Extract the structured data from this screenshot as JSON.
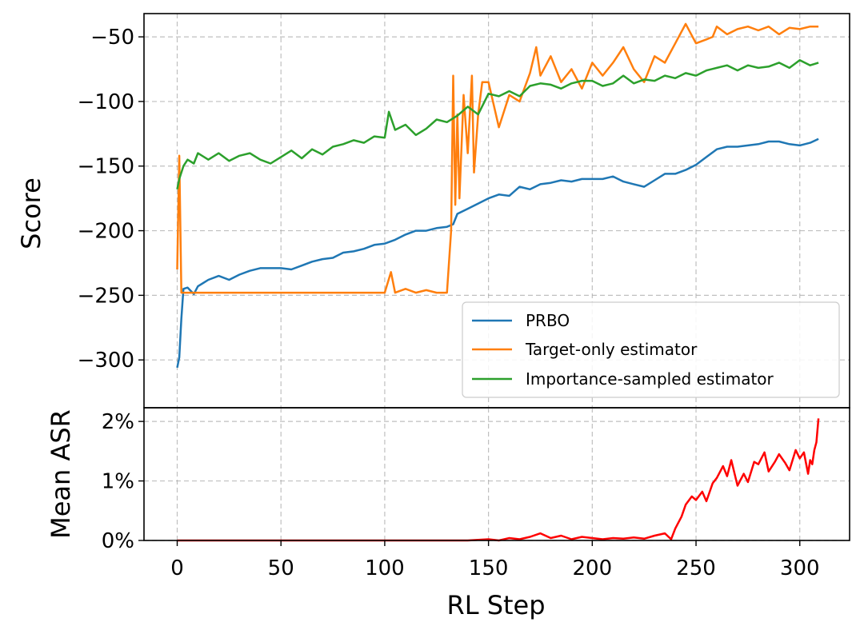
{
  "chart_data": [
    {
      "type": "line",
      "ylabel": "Score",
      "xlim": [
        -16,
        324
      ],
      "ylim": [
        -337,
        -32
      ],
      "yticks": [
        -50,
        -100,
        -150,
        -200,
        -250,
        -300
      ],
      "ytick_labels": [
        "−50",
        "−100",
        "−150",
        "−200",
        "−250",
        "−300"
      ],
      "grid": true,
      "legend_position": "lower-right",
      "series": [
        {
          "name": "PRBO",
          "color": "#1f77b4",
          "x": [
            0,
            1,
            2,
            3,
            5,
            8,
            10,
            15,
            20,
            25,
            30,
            35,
            40,
            45,
            50,
            55,
            60,
            65,
            70,
            75,
            80,
            85,
            90,
            95,
            100,
            105,
            110,
            115,
            120,
            125,
            130,
            133,
            135,
            140,
            145,
            150,
            155,
            160,
            165,
            170,
            175,
            180,
            185,
            190,
            195,
            200,
            205,
            210,
            215,
            220,
            225,
            230,
            235,
            240,
            245,
            250,
            255,
            260,
            265,
            270,
            275,
            280,
            285,
            290,
            295,
            300,
            305,
            309
          ],
          "y": [
            -306,
            -298,
            -268,
            -245,
            -244,
            -249,
            -243,
            -238,
            -235,
            -238,
            -234,
            -231,
            -229,
            -229,
            -229,
            -230,
            -227,
            -224,
            -222,
            -221,
            -217,
            -216,
            -214,
            -211,
            -210,
            -207,
            -203,
            -200,
            -200,
            -198,
            -197,
            -195,
            -187,
            -183,
            -179,
            -175,
            -172,
            -173,
            -166,
            -168,
            -164,
            -163,
            -161,
            -162,
            -160,
            -160,
            -160,
            -158,
            -162,
            -164,
            -166,
            -161,
            -156,
            -156,
            -153,
            -149,
            -143,
            -137,
            -135,
            -135,
            -134,
            -133,
            -131,
            -131,
            -133,
            -134,
            -132,
            -129
          ]
        },
        {
          "name": "Target-only estimator",
          "color": "#ff7f0e",
          "x": [
            0,
            1,
            2,
            3,
            10,
            20,
            30,
            40,
            50,
            55,
            60,
            70,
            80,
            90,
            100,
            103,
            105,
            110,
            115,
            120,
            125,
            130,
            132,
            133,
            134,
            135,
            136,
            138,
            140,
            142,
            143,
            145,
            147,
            150,
            155,
            160,
            165,
            170,
            173,
            175,
            180,
            185,
            190,
            195,
            200,
            205,
            210,
            215,
            220,
            225,
            230,
            235,
            240,
            245,
            250,
            255,
            258,
            260,
            265,
            270,
            275,
            280,
            285,
            290,
            295,
            300,
            305,
            309
          ],
          "y": [
            -230,
            -142,
            -248,
            -248,
            -248,
            -248,
            -248,
            -248,
            -248,
            -248,
            -248,
            -248,
            -248,
            -248,
            -248,
            -232,
            -248,
            -245,
            -248,
            -246,
            -248,
            -248,
            -200,
            -80,
            -180,
            -110,
            -175,
            -95,
            -140,
            -80,
            -155,
            -110,
            -85,
            -85,
            -120,
            -95,
            -100,
            -78,
            -58,
            -80,
            -65,
            -85,
            -75,
            -90,
            -70,
            -80,
            -70,
            -58,
            -75,
            -85,
            -65,
            -70,
            -55,
            -40,
            -55,
            -52,
            -50,
            -42,
            -48,
            -44,
            -42,
            -45,
            -42,
            -48,
            -43,
            -44,
            -42,
            -42
          ]
        },
        {
          "name": "Importance-sampled estimator",
          "color": "#2ca02c",
          "x": [
            0,
            1,
            3,
            5,
            8,
            10,
            15,
            20,
            25,
            30,
            35,
            40,
            45,
            50,
            55,
            60,
            65,
            70,
            75,
            80,
            85,
            90,
            95,
            100,
            102,
            105,
            110,
            115,
            120,
            125,
            130,
            135,
            140,
            145,
            150,
            155,
            160,
            165,
            170,
            175,
            180,
            185,
            190,
            195,
            200,
            205,
            210,
            215,
            220,
            225,
            230,
            235,
            240,
            245,
            250,
            255,
            260,
            265,
            270,
            275,
            280,
            285,
            290,
            295,
            300,
            305,
            309
          ],
          "y": [
            -168,
            -160,
            -150,
            -145,
            -148,
            -140,
            -145,
            -140,
            -146,
            -142,
            -140,
            -145,
            -148,
            -143,
            -138,
            -144,
            -137,
            -141,
            -135,
            -133,
            -130,
            -132,
            -127,
            -128,
            -108,
            -122,
            -118,
            -126,
            -121,
            -114,
            -116,
            -111,
            -104,
            -110,
            -94,
            -96,
            -92,
            -96,
            -88,
            -86,
            -87,
            -90,
            -86,
            -84,
            -84,
            -88,
            -86,
            -80,
            -86,
            -83,
            -84,
            -80,
            -82,
            -78,
            -80,
            -76,
            -74,
            -72,
            -76,
            -72,
            -74,
            -73,
            -70,
            -74,
            -68,
            -72,
            -70
          ]
        }
      ]
    },
    {
      "type": "line",
      "xlabel": "RL Step",
      "ylabel": "Mean ASR",
      "xlim": [
        -16,
        324
      ],
      "ylim": [
        0,
        0.0223
      ],
      "xticks": [
        0,
        50,
        100,
        150,
        200,
        250,
        300
      ],
      "xtick_labels": [
        "0",
        "50",
        "100",
        "150",
        "200",
        "250",
        "300"
      ],
      "yticks": [
        0,
        0.01,
        0.02
      ],
      "ytick_labels": [
        "0%",
        "1%",
        "2%"
      ],
      "grid": true,
      "series": [
        {
          "color": "#ff0000",
          "x": [
            0,
            50,
            100,
            130,
            140,
            150,
            155,
            160,
            165,
            170,
            175,
            180,
            185,
            190,
            195,
            200,
            205,
            210,
            215,
            220,
            225,
            230,
            235,
            238,
            240,
            243,
            245,
            248,
            250,
            253,
            255,
            258,
            260,
            263,
            265,
            267,
            270,
            273,
            275,
            278,
            280,
            283,
            285,
            288,
            290,
            293,
            295,
            298,
            300,
            302,
            304,
            305,
            306,
            307,
            308,
            309
          ],
          "y": [
            0,
            0,
            0,
            0,
            0,
            0.0002,
            0,
            0.0004,
            0.0002,
            0.0006,
            0.0012,
            0.0004,
            0.0008,
            0.0002,
            0.0006,
            0.0004,
            0.0002,
            0.0004,
            0.0003,
            0.0005,
            0.0003,
            0.0008,
            0.0012,
            0.0002,
            0.002,
            0.004,
            0.006,
            0.0074,
            0.0068,
            0.0082,
            0.0066,
            0.0096,
            0.0105,
            0.0125,
            0.0108,
            0.0135,
            0.0092,
            0.0112,
            0.0098,
            0.0132,
            0.0128,
            0.0148,
            0.0116,
            0.0132,
            0.0145,
            0.013,
            0.0118,
            0.0152,
            0.0138,
            0.0148,
            0.0112,
            0.0135,
            0.0128,
            0.0152,
            0.0165,
            0.0205
          ]
        }
      ]
    }
  ]
}
